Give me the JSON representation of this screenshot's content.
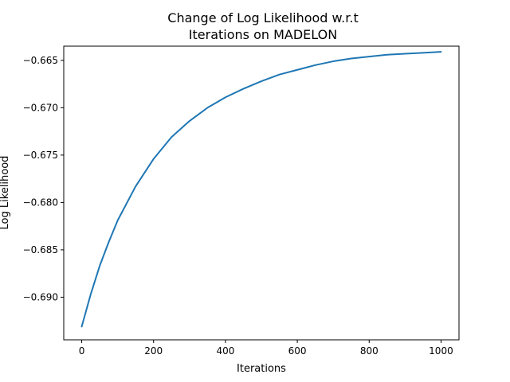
{
  "chart_data": {
    "type": "line",
    "title_lines": [
      "Change of Log Likelihood w.r.t",
      "Iterations on MADELON"
    ],
    "xlabel": "Iterations",
    "ylabel": "Log Likelihood",
    "xlim": [
      -50,
      1050
    ],
    "ylim": [
      -0.6945,
      -0.6635
    ],
    "xticks": [
      0,
      200,
      400,
      600,
      800,
      1000
    ],
    "xtick_labels": [
      "0",
      "200",
      "400",
      "600",
      "800",
      "1000"
    ],
    "yticks": [
      -0.69,
      -0.685,
      -0.68,
      -0.675,
      -0.67,
      -0.665
    ],
    "ytick_labels": [
      "−0.690",
      "−0.685",
      "−0.680",
      "−0.675",
      "−0.670",
      "−0.665"
    ],
    "grid": false,
    "series": [
      {
        "color": "#1f77b4",
        "x": [
          0,
          25,
          50,
          75,
          100,
          150,
          200,
          250,
          300,
          350,
          400,
          450,
          500,
          550,
          600,
          650,
          700,
          750,
          800,
          850,
          900,
          950,
          1000
        ],
        "y": [
          -0.6931,
          -0.6897,
          -0.6867,
          -0.6842,
          -0.6819,
          -0.6783,
          -0.6754,
          -0.6731,
          -0.6714,
          -0.67,
          -0.6689,
          -0.668,
          -0.6672,
          -0.6665,
          -0.666,
          -0.6655,
          -0.6651,
          -0.6648,
          -0.6646,
          -0.6644,
          -0.6643,
          -0.6642,
          -0.6641
        ]
      }
    ]
  }
}
